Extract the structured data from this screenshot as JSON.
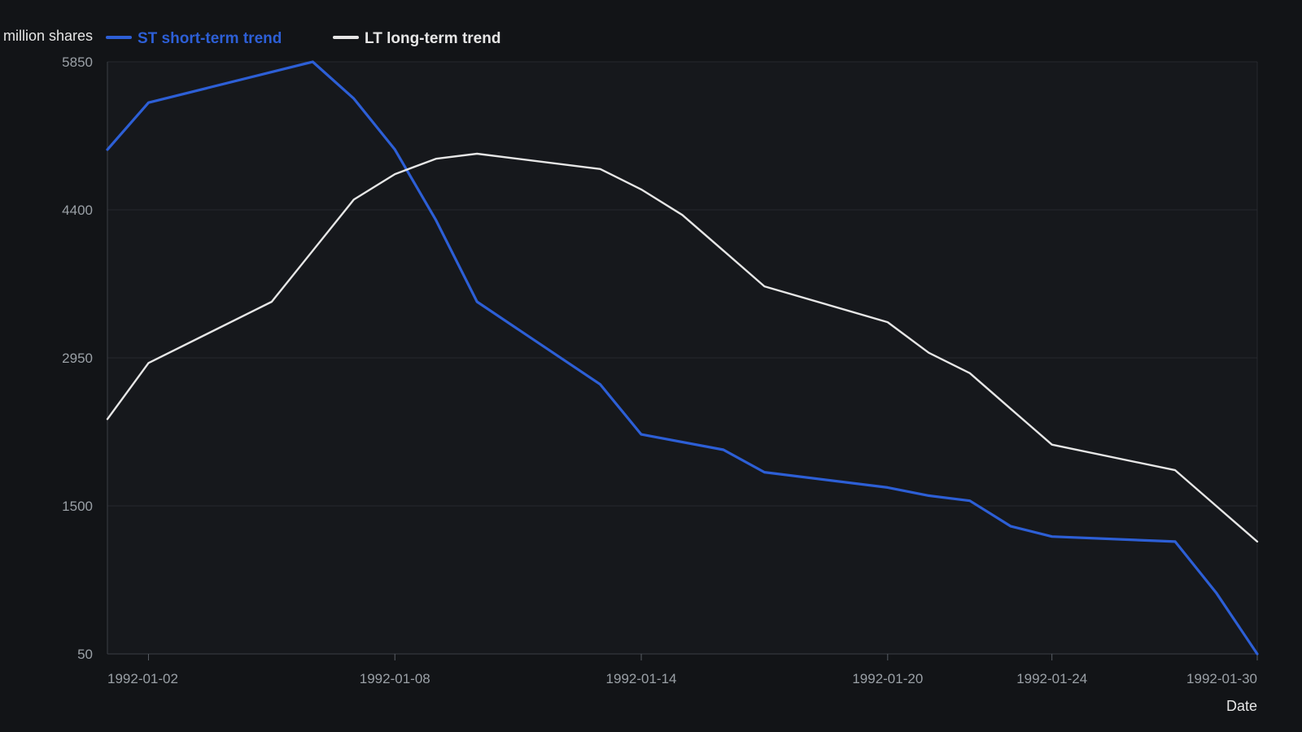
{
  "chart_data": {
    "type": "line",
    "ylabel": "million shares",
    "xlabel": "Date",
    "ylim": [
      50,
      5850
    ],
    "yticks": [
      50,
      1500,
      2950,
      4400,
      5850
    ],
    "xlim": [
      "1992-01-01",
      "1992-01-29"
    ],
    "xticks": [
      "1992-01-02",
      "1992-01-08",
      "1992-01-14",
      "1992-01-20",
      "1992-01-24",
      "1992-01-30"
    ],
    "grid": true,
    "legend_position": "top-left",
    "series": [
      {
        "name": "ST short-term trend",
        "color": "#2d5fd6",
        "x": [
          "1992-01-01",
          "1992-01-02",
          "1992-01-06",
          "1992-01-07",
          "1992-01-08",
          "1992-01-09",
          "1992-01-10",
          "1992-01-13",
          "1992-01-14",
          "1992-01-16",
          "1992-01-17",
          "1992-01-20",
          "1992-01-21",
          "1992-01-22",
          "1992-01-23",
          "1992-01-24",
          "1992-01-27",
          "1992-01-28",
          "1992-01-29"
        ],
        "values": [
          4990,
          5450,
          5850,
          5490,
          4990,
          4300,
          3500,
          2690,
          2200,
          2050,
          1830,
          1680,
          1600,
          1550,
          1300,
          1200,
          1150,
          650,
          50
        ]
      },
      {
        "name": "LT long-term trend",
        "color": "#e6e6e6",
        "x": [
          "1992-01-01",
          "1992-01-02",
          "1992-01-05",
          "1992-01-07",
          "1992-01-08",
          "1992-01-09",
          "1992-01-10",
          "1992-01-13",
          "1992-01-14",
          "1992-01-15",
          "1992-01-16",
          "1992-01-17",
          "1992-01-20",
          "1992-01-21",
          "1992-01-22",
          "1992-01-23",
          "1992-01-24",
          "1992-01-27",
          "1992-01-28",
          "1992-01-29"
        ],
        "values": [
          2350,
          2900,
          3500,
          4500,
          4750,
          4900,
          4950,
          4800,
          4600,
          4350,
          4000,
          3650,
          3300,
          3000,
          2800,
          2450,
          2100,
          1850,
          1500,
          1150
        ]
      }
    ]
  }
}
